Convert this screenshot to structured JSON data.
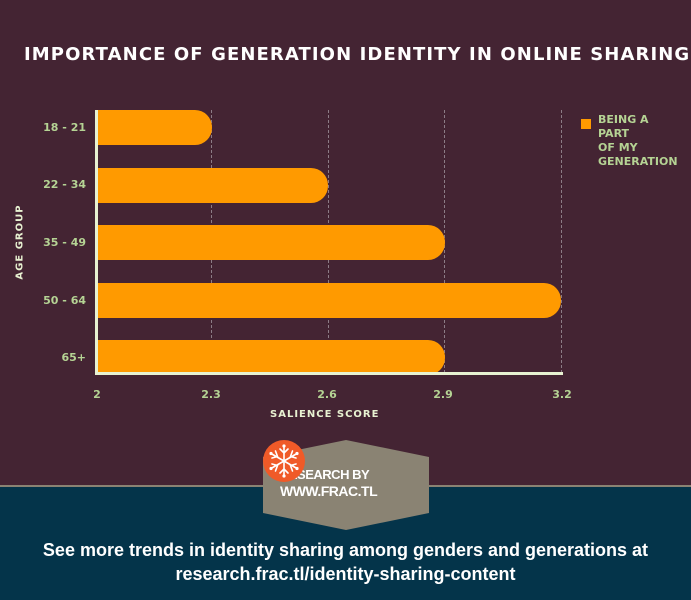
{
  "chart_data": {
    "type": "bar",
    "orientation": "horizontal",
    "title": "IMPORTANCE OF GENERATION IDENTITY IN ONLINE SHARING",
    "xlabel": "SALIENCE SCORE",
    "ylabel": "AGE GROUP",
    "categories": [
      "18 - 21",
      "22 - 34",
      "35 - 49",
      "50 - 64",
      "65+"
    ],
    "series": [
      {
        "name": "BEING A PART OF MY GENERATION",
        "values": [
          2.3,
          2.6,
          2.9,
          3.2,
          2.9
        ],
        "color": "#ff9a00"
      }
    ],
    "xlim": [
      2,
      3.2
    ],
    "x_ticks": [
      "2",
      "2.3",
      "2.6",
      "2.9",
      "3.2"
    ],
    "grid": "vertical dashed",
    "legend_position": "right"
  },
  "chart": {
    "title": "IMPORTANCE OF GENERATION IDENTITY IN ONLINE SHARING",
    "xlabel": "SALIENCE SCORE",
    "ylabel": "AGE GROUP",
    "categories": [
      "18 - 21",
      "22 - 34",
      "35 - 49",
      "50 - 64",
      "65+"
    ],
    "ticks": [
      "2",
      "2.3",
      "2.6",
      "2.9",
      "3.2"
    ],
    "legend": {
      "line1": "BEING A",
      "line2": "PART",
      "line3": "OF MY",
      "line4": "GENERATION"
    }
  },
  "badge": {
    "line1": "RESEARCH BY",
    "line2": "WWW.FRAC.TL",
    "icon": "snowflake-icon"
  },
  "footer": {
    "line1": "See more trends in identity sharing among genders and generations at",
    "line2": "research.frac.tl/identity-sharing-content"
  },
  "colors": {
    "background_top": "#442433",
    "background_bottom": "#04344a",
    "bar": "#ff9a00",
    "label_green": "#b5d394",
    "axis": "#e8f2d2",
    "badge": "#8a8373",
    "snowflake_circle": "#f05a28"
  }
}
